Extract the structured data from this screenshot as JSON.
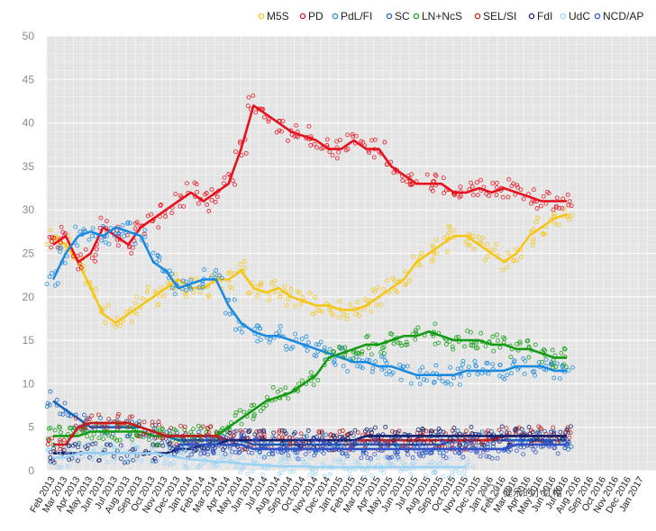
{
  "chart_data": {
    "type": "scatter",
    "title": "",
    "xlabel": "",
    "ylabel": "",
    "ylim": [
      0,
      50
    ],
    "yticks": [
      0,
      5,
      10,
      15,
      20,
      25,
      30,
      35,
      40,
      45,
      50
    ],
    "grid": true,
    "legend": "top",
    "x_categories": [
      "Feb 2013",
      "Mar 2013",
      "Apr 2013",
      "May 2013",
      "Jun 2013",
      "Jul 2013",
      "Aug 2013",
      "Sep 2013",
      "Oct 2013",
      "Nov 2013",
      "Dec 2013",
      "Jan 2014",
      "Feb 2014",
      "Mar 2014",
      "Apr 2014",
      "May 2014",
      "Jun 2014",
      "Jul 2014",
      "Aug 2014",
      "Sep 2014",
      "Oct 2014",
      "Nov 2014",
      "Dec 2014",
      "Jan 2015",
      "Feb 2015",
      "Mar 2015",
      "Apr 2015",
      "May 2015",
      "Jun 2015",
      "Jul 2015",
      "Aug 2015",
      "Sep 2015",
      "Oct 2015",
      "Nov 2015",
      "Dec 2015",
      "Jan 2016",
      "Feb 2016",
      "Mar 2016",
      "Apr 2016",
      "May 2016",
      "Jun 2016",
      "Jul 2016",
      "Aug 2016",
      "Sep 2016",
      "Oct 2016",
      "Nov 2016",
      "Dec 2016",
      "Jan 2017"
    ],
    "series": [
      {
        "name": "M5S",
        "color": "#f5c518",
        "values": [
          27,
          26,
          24,
          21,
          18,
          17,
          18,
          19,
          20,
          21,
          22,
          21,
          21,
          22,
          22,
          23,
          21,
          20.5,
          21,
          20,
          19.5,
          19,
          19,
          18.5,
          18.5,
          19,
          20,
          21,
          22,
          24,
          25,
          26,
          27,
          27,
          26,
          25,
          24,
          25,
          27,
          28,
          29,
          29.5,
          null,
          null,
          null,
          null,
          null,
          null
        ]
      },
      {
        "name": "PD",
        "color": "#e8101d",
        "values": [
          26,
          27,
          24,
          25,
          28,
          27,
          26,
          28,
          29,
          30,
          31,
          32,
          31,
          32,
          33,
          37,
          42,
          41,
          40,
          39,
          38.5,
          38,
          37,
          37,
          38,
          37,
          37,
          35,
          34,
          33,
          33,
          33,
          32,
          32,
          32.5,
          32,
          32.5,
          32,
          31.5,
          31,
          31,
          31,
          null,
          null,
          null,
          null,
          null,
          null
        ]
      },
      {
        "name": "PdL/FI",
        "color": "#1a8ae0",
        "values": [
          22,
          25,
          27,
          27.5,
          27,
          28,
          27.5,
          27,
          24,
          23,
          21,
          21.5,
          22,
          22,
          19,
          17,
          16,
          15.5,
          15.5,
          15,
          14.5,
          14,
          13.5,
          13,
          12.5,
          12.5,
          12,
          12,
          11.5,
          11,
          11,
          11,
          11,
          11.5,
          11.5,
          11.5,
          11.5,
          12,
          12,
          12,
          11.5,
          11.5,
          null,
          null,
          null,
          null,
          null,
          null
        ]
      },
      {
        "name": "SC",
        "color": "#1565c0",
        "values": [
          8,
          7,
          6,
          5,
          5,
          5,
          5,
          5,
          4.5,
          4,
          3.5,
          3.5,
          3.5,
          3.5,
          3.5,
          3.5,
          3,
          3,
          3,
          3,
          3,
          3,
          3,
          3,
          3,
          3,
          3,
          3,
          3,
          3,
          3,
          3,
          3.5,
          3.5,
          3.5,
          3.5,
          3.5,
          3.5,
          3.5,
          3.5,
          3.5,
          3.5,
          null,
          null,
          null,
          null,
          null,
          null
        ]
      },
      {
        "name": "LN+NcS",
        "color": "#129c12",
        "values": [
          4,
          4,
          4,
          4.5,
          4.5,
          4.5,
          4.5,
          4.5,
          4,
          4,
          4,
          4,
          4,
          4,
          5,
          6,
          7,
          8,
          8.5,
          9,
          10,
          11,
          13,
          13.5,
          14,
          14.5,
          14.5,
          15,
          15.5,
          15.5,
          16,
          15.5,
          15,
          15,
          15,
          14.5,
          14.5,
          14,
          14,
          13.5,
          13,
          13,
          null,
          null,
          null,
          null,
          null,
          null
        ]
      },
      {
        "name": "SEL/SI",
        "color": "#c21c1c",
        "values": [
          3,
          3,
          5,
          5.5,
          5.5,
          5.5,
          5.5,
          5,
          4.5,
          4,
          4,
          4,
          4,
          4,
          3.5,
          3.5,
          3.5,
          3.5,
          3.5,
          3.5,
          3.5,
          3.5,
          3.5,
          3.5,
          3.5,
          3.5,
          3.5,
          3.5,
          3.5,
          3.5,
          3.5,
          3.5,
          3.5,
          3.5,
          3.5,
          3.5,
          4,
          4,
          4,
          4,
          4,
          4,
          null,
          null,
          null,
          null,
          null,
          null
        ]
      },
      {
        "name": "FdI",
        "color": "#14206e",
        "values": [
          2,
          2,
          2,
          2,
          2,
          2,
          2,
          2,
          2,
          2,
          2.5,
          2.5,
          3,
          3,
          3.5,
          3.5,
          3.5,
          3.5,
          3.5,
          3.5,
          3.5,
          3.5,
          3.5,
          3.5,
          3.5,
          4,
          4,
          4,
          4,
          4,
          4,
          4,
          4,
          4,
          4,
          4,
          4,
          4,
          4,
          4,
          4,
          4,
          null,
          null,
          null,
          null,
          null,
          null
        ]
      },
      {
        "name": "UdC",
        "color": "#9ad3f5",
        "values": [
          1.5,
          1.5,
          2,
          2,
          2,
          2,
          2,
          2,
          2,
          1.8,
          1.5,
          1.3,
          1.2,
          1,
          1,
          0.8,
          0.7,
          0.6,
          0.5,
          0.5,
          0.5,
          0.4,
          0.4,
          0.4,
          0.4,
          0.4,
          0.4,
          0.4,
          0.4,
          0.4,
          0.4,
          0.4,
          0.4,
          0.4,
          null,
          null,
          null,
          null,
          null,
          null,
          null,
          null,
          null,
          null,
          null,
          null,
          null,
          null
        ]
      },
      {
        "name": "NCD/AP",
        "color": "#3050c8",
        "values": [
          null,
          null,
          null,
          null,
          null,
          null,
          null,
          null,
          null,
          null,
          3,
          3,
          3,
          3,
          3,
          3,
          2.5,
          2.5,
          2.5,
          2.5,
          2.5,
          2.5,
          2.5,
          2.5,
          2.5,
          2.5,
          2.5,
          2.5,
          2.5,
          2.5,
          2.5,
          2.5,
          2.5,
          2.5,
          2.5,
          2.5,
          2.5,
          3,
          3,
          3,
          3,
          3,
          null,
          null,
          null,
          null,
          null,
          null
        ]
      }
    ]
  },
  "watermark": "健乐的小红帽"
}
